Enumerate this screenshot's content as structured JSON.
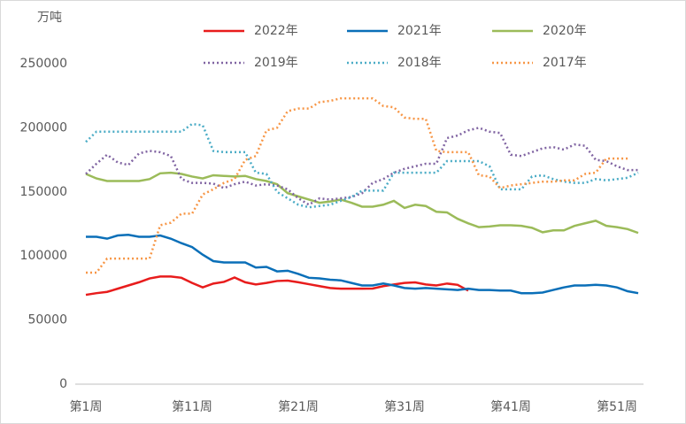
{
  "chart_data": {
    "type": "line",
    "y_label": "万吨",
    "categories": [
      "第1周",
      null,
      null,
      null,
      null,
      null,
      null,
      null,
      null,
      null,
      "第11周",
      null,
      null,
      null,
      null,
      null,
      null,
      null,
      null,
      null,
      "第21周",
      null,
      null,
      null,
      null,
      null,
      null,
      null,
      null,
      null,
      "第31周",
      null,
      null,
      null,
      null,
      null,
      null,
      null,
      null,
      null,
      "第41周",
      null,
      null,
      null,
      null,
      null,
      null,
      null,
      null,
      null,
      "第51周",
      null,
      null
    ],
    "ylim": [
      0,
      250000
    ],
    "yticks": [
      0,
      50000,
      100000,
      150000,
      200000,
      250000
    ],
    "grid": false,
    "legend": "top",
    "series": [
      {
        "name": "2022年",
        "color": "#e81c1c",
        "dash": false,
        "values": [
          69700,
          71000,
          72000,
          74500,
          77000,
          79500,
          82500,
          84000,
          84000,
          83000,
          79000,
          75500,
          78500,
          79800,
          83200,
          79500,
          77800,
          79000,
          80500,
          80800,
          79500,
          78000,
          76500,
          75000,
          74500,
          74500,
          74500,
          74600,
          76500,
          77800,
          79000,
          79400,
          77800,
          77000,
          78500,
          77500,
          73000,
          null,
          null,
          null,
          null,
          null,
          null,
          null,
          null,
          null,
          null,
          null,
          null,
          null,
          null,
          null,
          null
        ]
      },
      {
        "name": "2021年",
        "color": "#0a6fb8",
        "dash": false,
        "values": [
          115000,
          115000,
          113500,
          116000,
          116500,
          115000,
          115000,
          116000,
          113500,
          110000,
          107000,
          101000,
          96000,
          95000,
          95000,
          95000,
          91000,
          91500,
          88000,
          88500,
          86000,
          83000,
          82500,
          81500,
          81000,
          79000,
          77000,
          77000,
          78500,
          77000,
          75000,
          74500,
          75000,
          74500,
          74000,
          73500,
          74500,
          73500,
          73500,
          73000,
          73000,
          71000,
          71000,
          71500,
          73500,
          75500,
          77000,
          77000,
          77500,
          77000,
          75500,
          72500,
          71000
        ]
      },
      {
        "name": "2020年",
        "color": "#9bbb59",
        "dash": false,
        "values": [
          164000,
          160500,
          158500,
          158500,
          158500,
          158500,
          160000,
          164500,
          165000,
          164000,
          162000,
          160500,
          163000,
          162500,
          162000,
          162500,
          160000,
          158500,
          156000,
          149000,
          146500,
          144000,
          141500,
          142500,
          144000,
          141500,
          138500,
          138500,
          140000,
          143000,
          137500,
          140000,
          139000,
          134500,
          134000,
          129000,
          125500,
          122500,
          123000,
          124000,
          124000,
          123500,
          122000,
          118500,
          120000,
          120000,
          123500,
          125500,
          127500,
          123500,
          122500,
          121000,
          118000
        ]
      },
      {
        "name": "2019年",
        "color": "#8064a2",
        "dash": true,
        "values": [
          164000,
          172000,
          179000,
          173000,
          171000,
          180000,
          182000,
          181000,
          178000,
          160000,
          157000,
          157000,
          156500,
          153000,
          156000,
          158000,
          155000,
          156000,
          155000,
          152000,
          145000,
          140000,
          145000,
          144000,
          145000,
          146000,
          149000,
          157000,
          160000,
          165000,
          168000,
          170000,
          172000,
          172000,
          192000,
          194000,
          198000,
          200000,
          197000,
          196000,
          179000,
          178000,
          181000,
          184000,
          185000,
          183000,
          187000,
          186000,
          175000,
          174000,
          170000,
          167000,
          167000
        ]
      },
      {
        "name": "2018年",
        "color": "#4bacc6",
        "dash": true,
        "values": [
          189000,
          197000,
          197000,
          197000,
          197000,
          197000,
          197000,
          197000,
          197000,
          197000,
          203000,
          202000,
          182000,
          181000,
          181000,
          181000,
          165000,
          164000,
          150000,
          145000,
          140000,
          138000,
          139000,
          140000,
          143000,
          146000,
          151000,
          151000,
          151000,
          165000,
          165000,
          165000,
          165000,
          165000,
          174000,
          174000,
          174000,
          174000,
          170000,
          152000,
          152000,
          152000,
          162000,
          163000,
          160000,
          158000,
          157000,
          157000,
          160000,
          159000,
          160000,
          161000,
          165000
        ]
      },
      {
        "name": "2017年",
        "color": "#f79646",
        "dash": true,
        "values": [
          87000,
          87000,
          98000,
          98000,
          98000,
          98000,
          98000,
          124000,
          126000,
          133000,
          133000,
          148000,
          152000,
          157000,
          160000,
          175000,
          178000,
          198000,
          200000,
          213000,
          215000,
          215000,
          220000,
          221000,
          223000,
          223000,
          223000,
          223000,
          217000,
          216000,
          208000,
          207000,
          207000,
          182000,
          181000,
          181000,
          181000,
          163000,
          162000,
          153000,
          155000,
          156000,
          157000,
          158000,
          158000,
          159000,
          159000,
          164000,
          165000,
          176000,
          176000,
          176000,
          null
        ]
      }
    ]
  }
}
